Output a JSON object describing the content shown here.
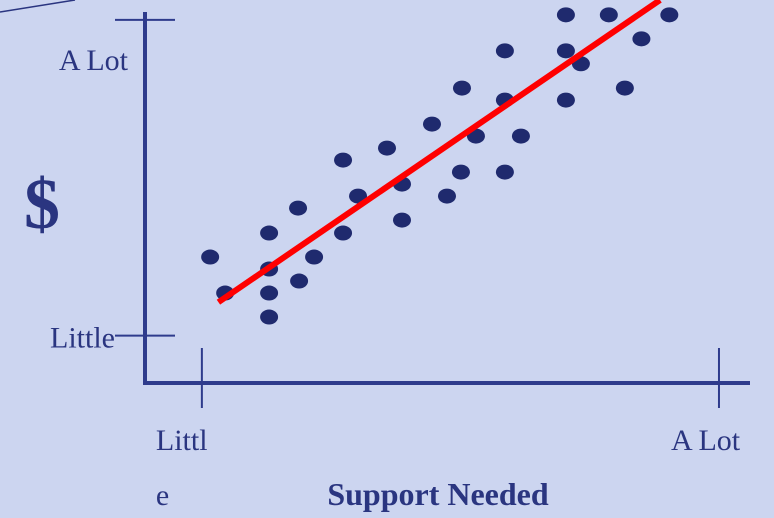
{
  "chart_data": {
    "type": "scatter",
    "y_label": "$",
    "x_label": "Support Needed",
    "xlim": [
      -1.1,
      10.6
    ],
    "ylim": [
      -1.5,
      10.25
    ],
    "xticks": [
      {
        "value": 0,
        "label": "Littl\ne"
      },
      {
        "value": 10,
        "label": "A Lot"
      }
    ],
    "yticks": [
      {
        "value": 0,
        "label": "Little"
      },
      {
        "value": 10,
        "label": "A Lot"
      }
    ],
    "series": [
      {
        "mark": "dot",
        "color": "#1f2a6e",
        "x": [
          7.04,
          7.87,
          9.04,
          8.5,
          5.86,
          7.04,
          7.33,
          5.03,
          5.86,
          7.04,
          8.18,
          4.45,
          3.58,
          5.3,
          6.17,
          2.73,
          5.01,
          5.86,
          3.02,
          3.87,
          4.74,
          1.86,
          3.87,
          1.3,
          2.73,
          0.16,
          2.17,
          1.3,
          0.45,
          1.88,
          1.3,
          1.3
        ],
        "values": [
          10.16,
          10.16,
          10.16,
          9.4,
          9.02,
          9.02,
          8.61,
          7.84,
          7.46,
          7.46,
          7.84,
          6.7,
          5.94,
          6.32,
          6.32,
          5.56,
          5.18,
          5.18,
          4.42,
          4.8,
          4.42,
          4.04,
          3.66,
          3.25,
          3.25,
          2.49,
          2.49,
          2.11,
          1.35,
          1.73,
          1.35,
          0.59
        ]
      },
      {
        "mark": "line",
        "color": "#ff0000",
        "x": [
          0.32,
          8.86
        ],
        "values": [
          1.06,
          10.63
        ]
      }
    ]
  }
}
